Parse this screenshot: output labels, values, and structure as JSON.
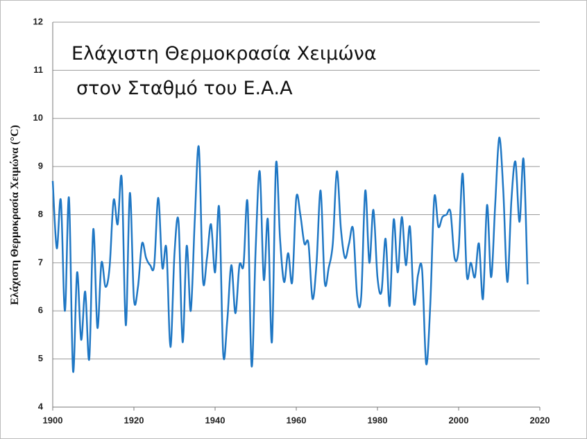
{
  "chart_data": {
    "type": "line",
    "title": [
      "Ελάχιστη Θερμοκρασία Χειμώνα",
      "στον Σταθμό του Ε.Α.Α"
    ],
    "y_label": "Ελάχιστη Θερμοκρασία Χειμώνα (°C)",
    "x": [
      1900,
      1901,
      1902,
      1903,
      1904,
      1905,
      1906,
      1907,
      1908,
      1909,
      1910,
      1911,
      1912,
      1913,
      1914,
      1915,
      1916,
      1917,
      1918,
      1919,
      1920,
      1921,
      1922,
      1923,
      1924,
      1925,
      1926,
      1927,
      1928,
      1929,
      1930,
      1931,
      1932,
      1933,
      1934,
      1935,
      1936,
      1937,
      1938,
      1939,
      1940,
      1941,
      1942,
      1943,
      1944,
      1945,
      1946,
      1947,
      1948,
      1949,
      1950,
      1951,
      1952,
      1953,
      1954,
      1955,
      1956,
      1957,
      1958,
      1959,
      1960,
      1961,
      1962,
      1963,
      1964,
      1965,
      1966,
      1967,
      1968,
      1969,
      1970,
      1971,
      1972,
      1973,
      1974,
      1975,
      1976,
      1977,
      1978,
      1979,
      1980,
      1981,
      1982,
      1983,
      1984,
      1985,
      1986,
      1987,
      1988,
      1989,
      1990,
      1991,
      1992,
      1993,
      1994,
      1995,
      1996,
      1997,
      1998,
      1999,
      2000,
      2001,
      2002,
      2003,
      2004,
      2005,
      2006,
      2007,
      2008,
      2009,
      2010,
      2011,
      2012,
      2013,
      2014,
      2015,
      2016,
      2017
    ],
    "series": [
      {
        "color": "#1f77c4",
        "values": [
          8.7,
          7.3,
          8.3,
          6.0,
          8.35,
          4.75,
          6.8,
          5.4,
          6.4,
          5.0,
          7.7,
          5.65,
          7.0,
          6.5,
          6.9,
          8.3,
          7.8,
          8.75,
          5.7,
          8.45,
          6.25,
          6.5,
          7.4,
          7.1,
          6.95,
          6.95,
          8.35,
          6.9,
          7.3,
          5.25,
          7.2,
          7.85,
          5.35,
          7.35,
          6.0,
          7.9,
          9.4,
          6.65,
          7.1,
          7.8,
          6.8,
          8.15,
          5.1,
          5.8,
          6.95,
          5.95,
          6.95,
          6.95,
          8.25,
          4.85,
          7.3,
          8.9,
          6.65,
          7.9,
          5.35,
          9.05,
          7.5,
          6.6,
          7.2,
          6.6,
          8.35,
          8.0,
          7.4,
          7.4,
          6.25,
          7.0,
          8.5,
          6.6,
          6.9,
          7.4,
          8.9,
          7.7,
          7.1,
          7.4,
          7.7,
          6.3,
          6.3,
          8.5,
          7.0,
          8.1,
          6.7,
          6.4,
          7.5,
          6.1,
          7.9,
          6.8,
          7.95,
          6.95,
          7.75,
          6.15,
          6.75,
          6.85,
          4.9,
          6.1,
          8.35,
          7.75,
          7.95,
          8.0,
          8.05,
          7.1,
          7.3,
          8.85,
          6.75,
          7.0,
          6.7,
          7.4,
          6.25,
          8.2,
          6.7,
          8.2,
          9.6,
          8.5,
          6.6,
          8.3,
          9.1,
          7.85,
          9.15,
          6.55
        ]
      }
    ],
    "xlim": [
      1900,
      2020
    ],
    "xticks": [
      1900,
      1920,
      1940,
      1960,
      1980,
      2000,
      2020
    ],
    "ylim": [
      4,
      12
    ],
    "yticks": [
      4,
      5,
      6,
      7,
      8,
      9,
      10,
      11,
      12
    ],
    "grid": true
  }
}
